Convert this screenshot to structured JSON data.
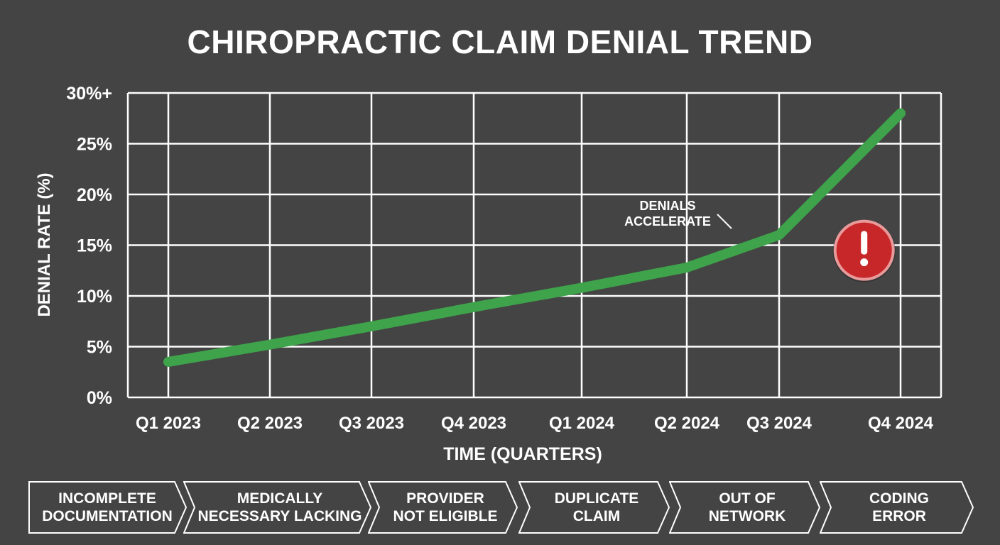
{
  "title": "CHIROPRACTIC CLAIM DENIAL TREND",
  "chart_data": {
    "type": "line",
    "title": "CHIROPRACTIC CLAIM DENIAL TREND",
    "xlabel": "TIME (QUARTERS)",
    "ylabel": "DENIAL RATE (%)",
    "categories": [
      "Q1 2023",
      "Q2 2023",
      "Q3 2023",
      "Q4 2023",
      "Q1 2024",
      "Q2 2024",
      "Q3 2024",
      "Q4 2024"
    ],
    "y_ticks": [
      "0%",
      "5%",
      "10%",
      "15%",
      "20%",
      "25%",
      "30%+"
    ],
    "y_tick_values": [
      0,
      5,
      10,
      15,
      20,
      25,
      30
    ],
    "ylim": [
      0,
      30
    ],
    "grid": true,
    "series": [
      {
        "values": [
          3.5,
          5.2,
          7.0,
          8.9,
          10.8,
          12.8,
          16.0,
          28.0
        ],
        "color": "#3ea34a"
      }
    ],
    "annotation": {
      "text": "DENIALS\nACCELERATE",
      "x": 6.7,
      "y": 14.5,
      "icon": "alert-exclamation-icon",
      "icon_color": "#c8272a"
    }
  },
  "denial_reasons": [
    "INCOMPLETE\nDOCUMENTATION",
    "MEDICALLY\nNECESSARY LACKING",
    "PROVIDER\nNOT ELIGIBLE",
    "DUPLICATE\nCLAIM",
    "OUT OF\nNETWORK",
    "CODING\nERROR"
  ]
}
